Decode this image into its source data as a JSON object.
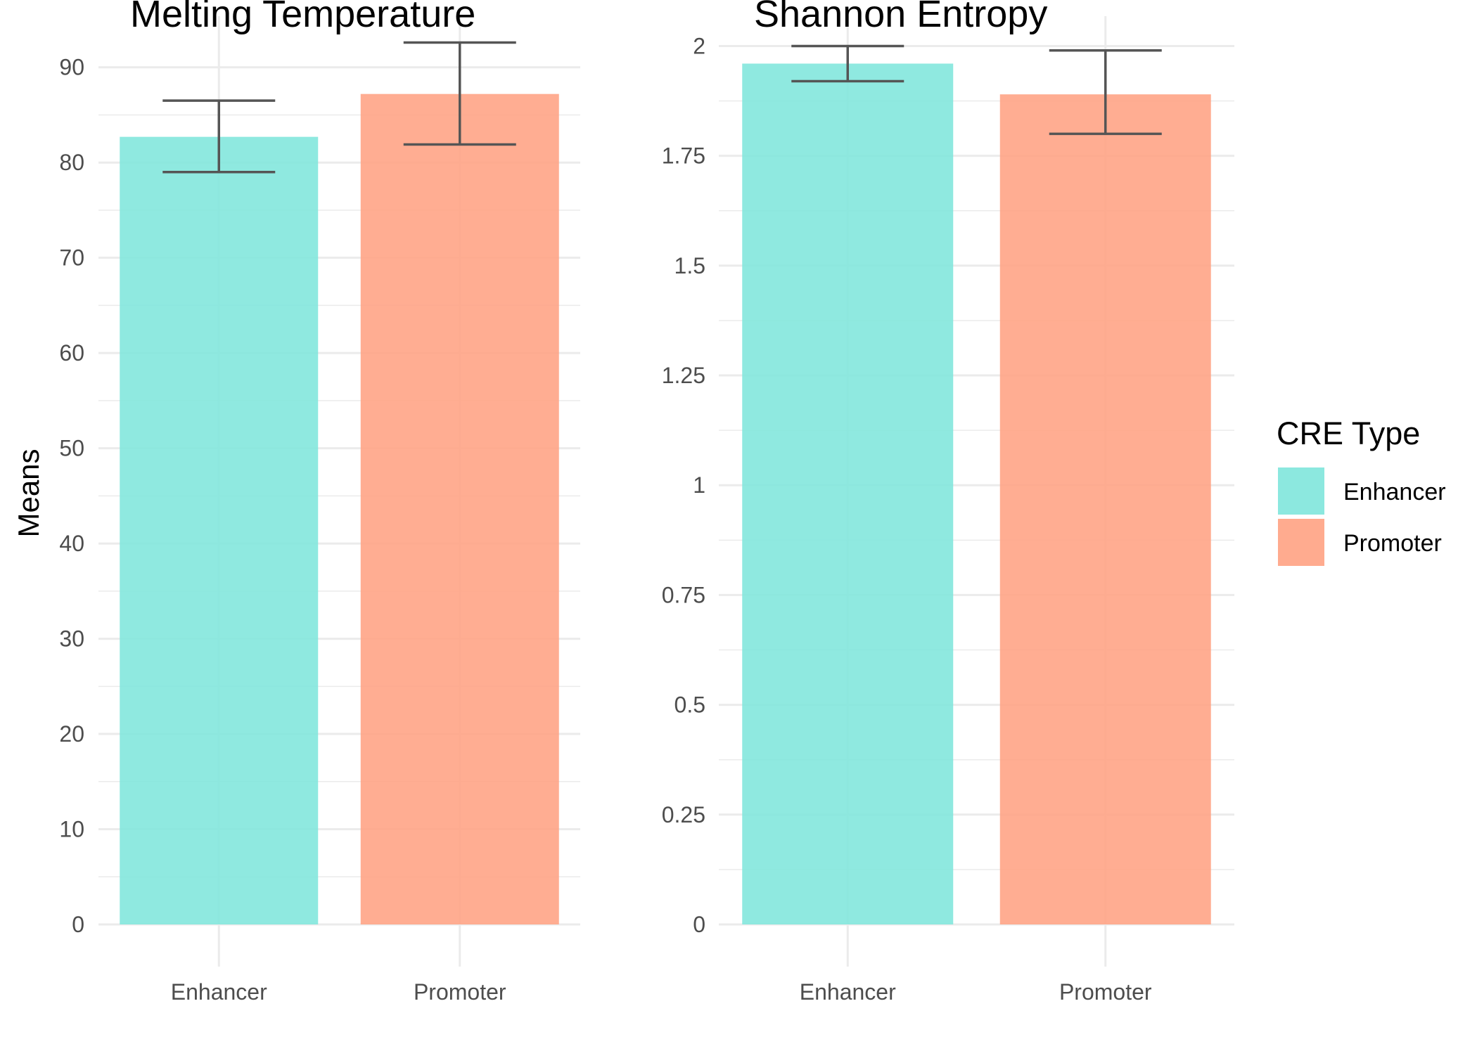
{
  "chart_data": [
    {
      "type": "bar",
      "title": "Melting Temperature",
      "xlabel": "",
      "ylabel": "Means",
      "categories": [
        "Enhancer",
        "Promoter"
      ],
      "values": [
        82.7,
        87.2
      ],
      "error_bars": {
        "lower": [
          79.0,
          81.9
        ],
        "upper": [
          86.5,
          92.6
        ]
      },
      "ylim": [
        0,
        95
      ],
      "yticks": [
        0,
        10,
        20,
        30,
        40,
        50,
        60,
        70,
        80,
        90
      ],
      "ytick_labels": [
        "0",
        "10",
        "20",
        "30",
        "40",
        "50",
        "60",
        "70",
        "80",
        "90"
      ],
      "grid": true
    },
    {
      "type": "bar",
      "title": "Shannon Entropy",
      "xlabel": "",
      "ylabel": "",
      "categories": [
        "Enhancer",
        "Promoter"
      ],
      "values": [
        1.96,
        1.89
      ],
      "error_bars": {
        "lower": [
          1.92,
          1.8
        ],
        "upper": [
          2.0,
          1.99
        ]
      },
      "ylim": [
        0,
        2.06
      ],
      "yticks": [
        0,
        0.25,
        0.5,
        0.75,
        1,
        1.25,
        1.5,
        1.75,
        2
      ],
      "ytick_labels": [
        "0",
        "0.25",
        "0.5",
        "0.75",
        "1",
        "1.25",
        "1.5",
        "1.75",
        "2"
      ],
      "grid": true
    }
  ],
  "legend": {
    "title": "CRE Type",
    "position": "right",
    "items": [
      {
        "label": "Enhancer",
        "color": "#7fe6dc"
      },
      {
        "label": "Promoter",
        "color": "#ffa283"
      }
    ]
  },
  "colors": {
    "Enhancer": "#7fe6dc",
    "Promoter": "#ffa283",
    "grid": "#ebebeb",
    "errorbar": "#555555",
    "tick_text": "#4d4d4d"
  }
}
